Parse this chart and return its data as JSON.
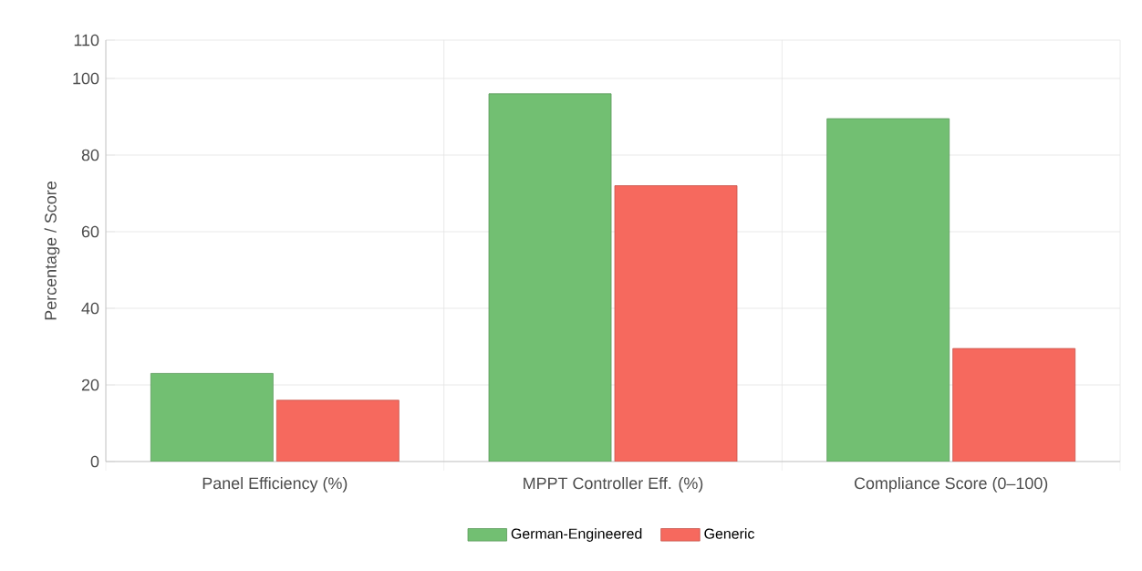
{
  "chart_data": {
    "type": "bar",
    "ylabel": "Percentage / Score",
    "categories": [
      "Panel Efficiency (%)",
      "MPPT Controller Eff. (%)",
      "Compliance Score (0–100)"
    ],
    "series": [
      {
        "name": "German-Engineered",
        "color": "#72bf72",
        "values": [
          23,
          96,
          89.5
        ]
      },
      {
        "name": "Generic",
        "color": "#f6695e",
        "values": [
          16,
          72,
          29.5
        ]
      }
    ],
    "ylim": [
      0,
      110
    ],
    "yticks": [
      0,
      20,
      40,
      60,
      80,
      100,
      110
    ],
    "grid": true,
    "legend": "bottom"
  }
}
